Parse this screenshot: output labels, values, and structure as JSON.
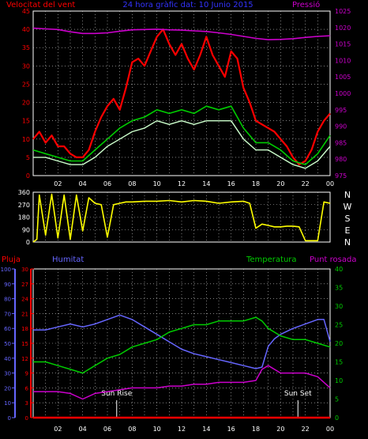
{
  "colors": {
    "background": "#000000",
    "wind": "#ff0000",
    "gust": "#00cc00",
    "wind_avg": "#ccffcc",
    "pressure": "#cc00cc",
    "direction": "#ffff00",
    "rain": "#ff0000",
    "humidity": "#6666ff",
    "temperature": "#00cc00",
    "dewpoint": "#cc00cc",
    "grid": "#d0d0d0",
    "axis": "#ffffff"
  },
  "header": {
    "left_title": "Velocitat del vent",
    "center_title": "24 hora gràfic dat:  10 Junio 2015",
    "right_title": "Pressió"
  },
  "chart_data": [
    {
      "id": "wind_pressure",
      "type": "line",
      "x_ticks": [
        "02",
        "04",
        "06",
        "08",
        "10",
        "12",
        "14",
        "16",
        "18",
        "20",
        "22",
        "00"
      ],
      "left_axis": {
        "ticks": [
          "0",
          "5",
          "10",
          "15",
          "20",
          "25",
          "30",
          "35",
          "40",
          "45"
        ],
        "ylim": [
          0,
          45
        ]
      },
      "right_axis": {
        "ticks": [
          "975",
          "980",
          "985",
          "990",
          "995",
          "1000",
          "1005",
          "1010",
          "1015",
          "1020",
          "1025"
        ],
        "ylim": [
          975,
          1025
        ]
      },
      "series": [
        {
          "key": "wind",
          "axis": "left",
          "x": [
            0,
            0.5,
            1,
            1.5,
            2,
            2.5,
            3,
            3.5,
            4,
            4.5,
            5,
            5.5,
            6,
            6.5,
            7,
            7.5,
            8,
            8.5,
            9,
            9.5,
            10,
            10.5,
            11,
            11.5,
            12,
            12.5,
            13,
            13.5,
            14,
            14.5,
            15,
            15.5,
            16,
            16.5,
            17,
            17.5,
            18,
            18.5,
            19,
            19.5,
            20,
            20.5,
            21,
            21.5,
            22,
            22.5,
            23,
            23.5,
            24
          ],
          "values": [
            10,
            12,
            9,
            11,
            8,
            8,
            6,
            5,
            5,
            7,
            12,
            16,
            19,
            21,
            18,
            24,
            31,
            32,
            30,
            34,
            38,
            40,
            36,
            33,
            36,
            32,
            29,
            33,
            38,
            33,
            30,
            27,
            34,
            32,
            24,
            20,
            15,
            14,
            13,
            12,
            10,
            8,
            5,
            3,
            4,
            7,
            12,
            15,
            17
          ]
        },
        {
          "key": "gust",
          "axis": "left",
          "x": [
            0,
            1,
            2,
            3,
            4,
            5,
            6,
            7,
            8,
            9,
            10,
            11,
            12,
            13,
            14,
            15,
            16,
            17,
            18,
            19,
            20,
            21,
            22,
            23,
            24
          ],
          "values": [
            7,
            6,
            5,
            4,
            4,
            7,
            10,
            13,
            15,
            16,
            18,
            17,
            18,
            17,
            19,
            18,
            19,
            13,
            9,
            9,
            7,
            4,
            3,
            6,
            11
          ]
        },
        {
          "key": "wind_avg",
          "axis": "left",
          "x": [
            0,
            1,
            2,
            3,
            4,
            5,
            6,
            7,
            8,
            9,
            10,
            11,
            12,
            13,
            14,
            15,
            16,
            17,
            18,
            19,
            20,
            21,
            22,
            23,
            24
          ],
          "values": [
            5,
            5,
            4,
            3,
            3,
            5,
            8,
            10,
            12,
            13,
            15,
            14,
            15,
            14,
            15,
            15,
            15,
            10,
            7,
            7,
            5,
            3,
            2,
            4,
            8
          ]
        },
        {
          "key": "pressure",
          "axis": "right",
          "x": [
            0,
            1,
            2,
            3,
            4,
            5,
            6,
            7,
            8,
            9,
            10,
            11,
            12,
            13,
            14,
            15,
            16,
            17,
            18,
            19,
            20,
            21,
            22,
            23,
            24
          ],
          "values": [
            1019.8,
            1019.6,
            1019.4,
            1018.7,
            1018.2,
            1018.2,
            1018.4,
            1018.9,
            1019.3,
            1019.4,
            1019.5,
            1019.3,
            1019.2,
            1019.0,
            1018.8,
            1018.4,
            1017.9,
            1017.3,
            1016.7,
            1016.3,
            1016.4,
            1016.6,
            1017.0,
            1017.3,
            1017.5
          ]
        }
      ]
    },
    {
      "id": "wind_direction",
      "type": "line",
      "left_axis": {
        "ticks": [
          "0",
          "90",
          "180",
          "270",
          "360"
        ],
        "ylim": [
          0,
          360
        ]
      },
      "compass_labels": [
        "N",
        "W",
        "S",
        "E",
        "N"
      ],
      "series": [
        {
          "key": "direction",
          "x": [
            0,
            0.3,
            0.5,
            1,
            1.5,
            2,
            2.5,
            3,
            3.5,
            4,
            4.5,
            5,
            5.5,
            6,
            6.5,
            7,
            7.5,
            8,
            9,
            10,
            11,
            12,
            13,
            14,
            15,
            16,
            17,
            17.5,
            18,
            18.5,
            19,
            19.5,
            20,
            20.5,
            21,
            21.5,
            22,
            22.5,
            23,
            23.5,
            24
          ],
          "values": [
            0,
            20,
            340,
            50,
            345,
            30,
            340,
            20,
            340,
            80,
            320,
            280,
            270,
            35,
            270,
            280,
            290,
            290,
            295,
            295,
            300,
            290,
            300,
            295,
            280,
            290,
            295,
            280,
            100,
            130,
            120,
            110,
            110,
            115,
            115,
            110,
            10,
            10,
            10,
            290,
            280
          ]
        }
      ]
    },
    {
      "id": "rain_humidity_temp",
      "type": "line",
      "labels": {
        "rain": "Pluja",
        "humidity": "Humitat",
        "temperature": "Temperatura",
        "dewpoint": "Punt rosada"
      },
      "x_ticks": [
        "02",
        "04",
        "06",
        "08",
        "10",
        "12",
        "14",
        "16",
        "18",
        "20",
        "22",
        "00"
      ],
      "humidity_axis": {
        "ticks": [
          "0",
          "10",
          "20",
          "30",
          "40",
          "50",
          "60",
          "70",
          "80",
          "90",
          "100"
        ],
        "ylim": [
          0,
          100
        ]
      },
      "rain_axis": {
        "ticks": [
          "0",
          "3",
          "6",
          "9",
          "12",
          "15",
          "18",
          "21",
          "24",
          "27",
          "30"
        ],
        "ylim": [
          0,
          30
        ]
      },
      "temp_axis": {
        "ticks": [
          "0",
          "5",
          "10",
          "15",
          "20",
          "25",
          "30",
          "35",
          "40"
        ],
        "ylim": [
          0,
          40
        ]
      },
      "annotations": {
        "sunrise": "Sun Rise",
        "sunset": "Sun Set"
      },
      "series": [
        {
          "key": "rain",
          "axis": "rain",
          "x": [
            0,
            24
          ],
          "values": [
            0,
            0
          ]
        },
        {
          "key": "humidity",
          "axis": "humidity",
          "x": [
            0,
            1,
            2,
            3,
            4,
            5,
            6,
            7,
            8,
            9,
            10,
            11,
            12,
            13,
            14,
            15,
            16,
            17,
            18,
            18.5,
            19,
            19.5,
            20,
            21,
            22,
            23,
            23.5,
            24
          ],
          "values": [
            59,
            59,
            61,
            63,
            61,
            63,
            66,
            69,
            66,
            61,
            56,
            51,
            46,
            43,
            41,
            39,
            37,
            35,
            33,
            34,
            48,
            53,
            56,
            60,
            63,
            66,
            66,
            51
          ]
        },
        {
          "key": "temperature",
          "axis": "temp",
          "x": [
            0,
            1,
            2,
            3,
            4,
            5,
            6,
            7,
            8,
            9,
            10,
            11,
            12,
            13,
            14,
            15,
            16,
            17,
            18,
            18.5,
            19,
            20,
            21,
            22,
            23,
            24
          ],
          "values": [
            15,
            15,
            14,
            13,
            12,
            14,
            16,
            17,
            19,
            20,
            21,
            23,
            24,
            25,
            25,
            26,
            26,
            26,
            27,
            26,
            24,
            22,
            21,
            21,
            20,
            19
          ]
        },
        {
          "key": "dewpoint",
          "axis": "temp",
          "x": [
            0,
            1,
            2,
            3,
            4,
            5,
            6,
            7,
            8,
            9,
            10,
            11,
            12,
            13,
            14,
            15,
            16,
            17,
            18,
            18.5,
            19,
            20,
            21,
            22,
            23,
            24
          ],
          "values": [
            7,
            7,
            7,
            6.5,
            5,
            6.5,
            7,
            7.5,
            8,
            8,
            8,
            8.5,
            8.5,
            9,
            9,
            9.5,
            9.5,
            9.5,
            10,
            13,
            14,
            12,
            12,
            12,
            11,
            8
          ]
        }
      ]
    }
  ]
}
